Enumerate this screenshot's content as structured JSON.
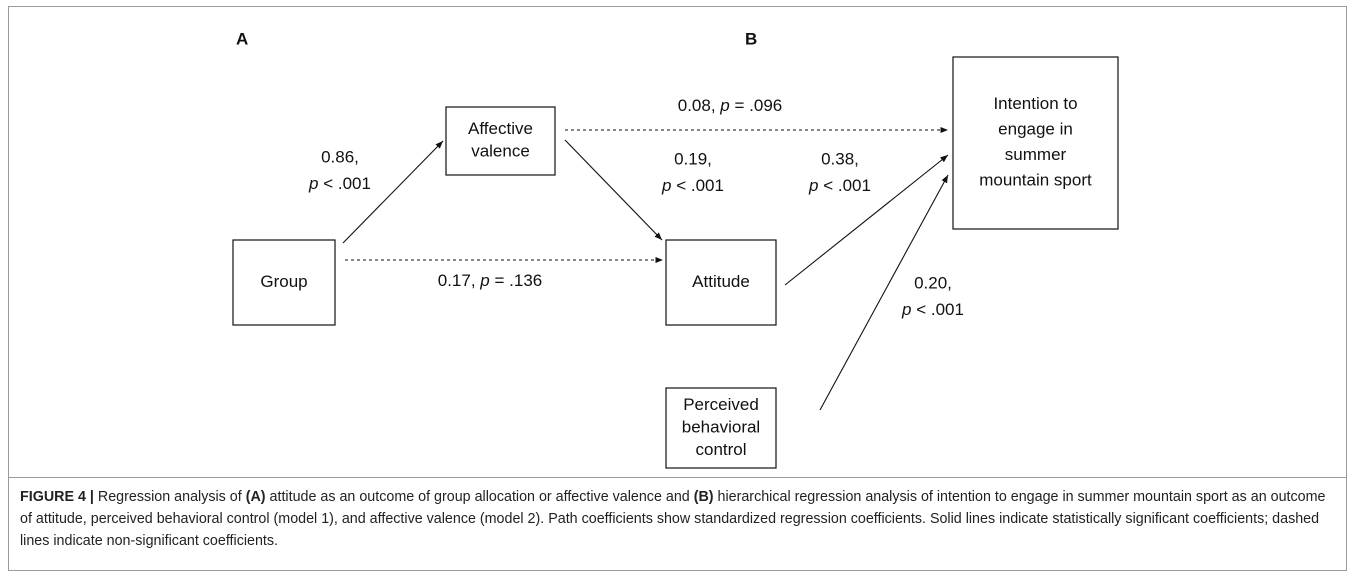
{
  "panels": [
    "A",
    "B"
  ],
  "nodes": [
    {
      "lines": [
        "Group"
      ]
    },
    {
      "lines": [
        "Affective",
        "valence"
      ]
    },
    {
      "lines": [
        "Attitude"
      ]
    },
    {
      "lines": [
        "Perceived",
        "behavioral",
        "control"
      ]
    },
    {
      "lines": [
        "Intention to",
        "engage in",
        "summer",
        "mountain sport"
      ]
    }
  ],
  "edges": [
    {
      "from": 0,
      "to": 1,
      "style": "solid",
      "coef": "0.86,",
      "p": "p",
      "stat": "< .001"
    },
    {
      "from": 0,
      "to": 2,
      "style": "dashed",
      "coef": "0.17,",
      "p": "p",
      "stat": "= .136"
    },
    {
      "from": 1,
      "to": 2,
      "style": "solid",
      "coef": "0.19,",
      "p": "p",
      "stat": "< .001"
    },
    {
      "from": 1,
      "to": 4,
      "style": "dashed",
      "coef": "0.08,",
      "p": "p",
      "stat": "= .096"
    },
    {
      "from": 2,
      "to": 4,
      "style": "solid",
      "coef": "0.38,",
      "p": "p",
      "stat": "< .001"
    },
    {
      "from": 3,
      "to": 4,
      "style": "solid",
      "coef": "0.20,",
      "p": "p",
      "stat": "< .001"
    }
  ],
  "caption": {
    "label": "FIGURE 4 |",
    "parts": [
      {
        "text": " Regression analysis of "
      },
      {
        "text": "(A)",
        "bold": true
      },
      {
        "text": " attitude as an outcome of group allocation or affective valence and "
      },
      {
        "text": "(B)",
        "bold": true
      },
      {
        "text": " hierarchical regression analysis of intention to engage in summer mountain sport as an outcome of attitude, perceived behavioral control (model 1), and affective valence (model 2). Path coefficients show standardized regression coefficients. Solid lines indicate statistically significant coefficients; dashed lines indicate non-significant coefficients."
      }
    ]
  }
}
